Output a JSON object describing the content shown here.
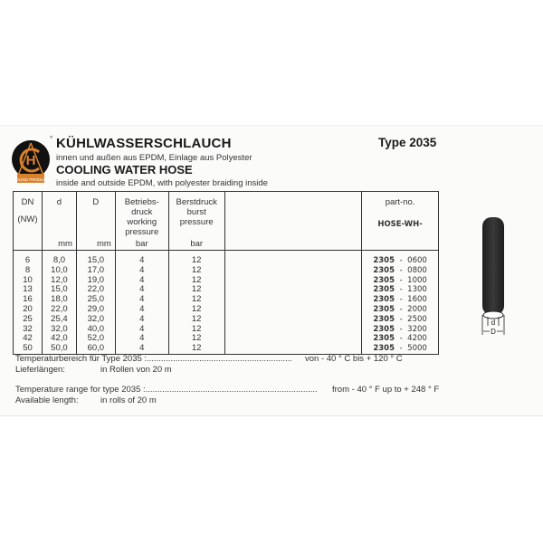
{
  "header": {
    "title_de": "KÜHLWASSERSCHLAUCH",
    "subtitle_de": "innen und außen aus EPDM, Einlage aus Polyester",
    "title_en": "COOLING WATER HOSE",
    "subtitle_en": "inside and outside EPDM, with polyester braiding inside",
    "type": "Type 2035",
    "logo_text": "COOLING PRODUCTS",
    "logo_letters": "ACH"
  },
  "table": {
    "headers": [
      {
        "lines": [
          "DN",
          "(NW)"
        ],
        "unit": ""
      },
      {
        "lines": [
          "d"
        ],
        "unit": "mm"
      },
      {
        "lines": [
          "D"
        ],
        "unit": "mm"
      },
      {
        "lines": [
          "Betriebs-",
          "druck",
          "working",
          "pressure"
        ],
        "unit": "bar"
      },
      {
        "lines": [
          "Berstdruck",
          "burst",
          "pressure"
        ],
        "unit": "bar"
      },
      {
        "lines": [],
        "unit": ""
      },
      {
        "lines": [
          "part-no.",
          "HOSE-WH-"
        ],
        "unit": ""
      }
    ],
    "rows": [
      {
        "dn": "6",
        "d": "8,0",
        "D": "15,0",
        "working": "4",
        "burst": "12",
        "part_prefix": "2305",
        "part_suffix": "0600"
      },
      {
        "dn": "8",
        "d": "10,0",
        "D": "17,0",
        "working": "4",
        "burst": "12",
        "part_prefix": "2305",
        "part_suffix": "0800"
      },
      {
        "dn": "10",
        "d": "12,0",
        "D": "19,0",
        "working": "4",
        "burst": "12",
        "part_prefix": "2305",
        "part_suffix": "1000"
      },
      {
        "dn": "13",
        "d": "15,0",
        "D": "22,0",
        "working": "4",
        "burst": "12",
        "part_prefix": "2305",
        "part_suffix": "1300"
      },
      {
        "dn": "16",
        "d": "18,0",
        "D": "25,0",
        "working": "4",
        "burst": "12",
        "part_prefix": "2305",
        "part_suffix": "1600"
      },
      {
        "dn": "20",
        "d": "22,0",
        "D": "29,0",
        "working": "4",
        "burst": "12",
        "part_prefix": "2305",
        "part_suffix": "2000"
      },
      {
        "dn": "25",
        "d": "25,4",
        "D": "32,0",
        "working": "4",
        "burst": "12",
        "part_prefix": "2305",
        "part_suffix": "2500"
      },
      {
        "dn": "32",
        "d": "32,0",
        "D": "40,0",
        "working": "4",
        "burst": "12",
        "part_prefix": "2305",
        "part_suffix": "3200"
      },
      {
        "dn": "42",
        "d": "42,0",
        "D": "52,0",
        "working": "4",
        "burst": "12",
        "part_prefix": "2305",
        "part_suffix": "4200"
      },
      {
        "dn": "50",
        "d": "50,0",
        "D": "60,0",
        "working": "4",
        "burst": "12",
        "part_prefix": "2305",
        "part_suffix": "5000"
      }
    ]
  },
  "footer": {
    "temp_de_label": "Temperaturbereich für Type 2035 :",
    "temp_de_value": "von - 40 ° C bis + 120 ° C",
    "length_de_label": "Lieferlängen:",
    "length_de_value": "in Rollen von 20 m",
    "temp_en_label": "Temperature range for type 2035 :",
    "temp_en_value": "from - 40 ° F up to + 248 ° F",
    "length_en_label": "Available length:",
    "length_en_value": "in rolls of 20 m"
  },
  "diagram": {
    "inner_label": "d",
    "outer_label": "D"
  },
  "colors": {
    "logo_orange": "#d9822b",
    "logo_black": "#111111",
    "hose": "#2b2b2b"
  }
}
